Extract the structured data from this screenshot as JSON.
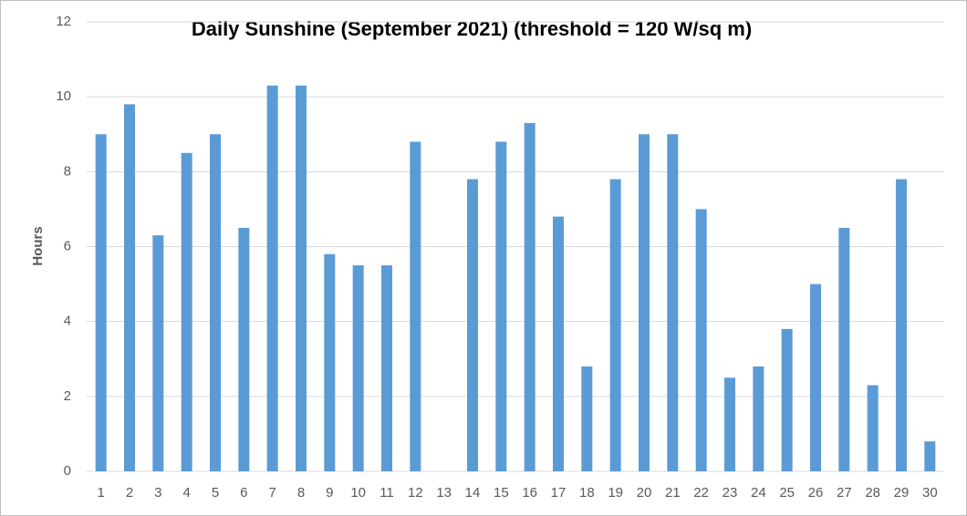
{
  "chart_data": {
    "type": "bar",
    "title": "Daily Sunshine (September 2021) (threshold = 120 W/sq m)",
    "y_label": "Hours",
    "categories": [
      "1",
      "2",
      "3",
      "4",
      "5",
      "6",
      "7",
      "8",
      "9",
      "10",
      "11",
      "12",
      "13",
      "14",
      "15",
      "16",
      "17",
      "18",
      "19",
      "20",
      "21",
      "22",
      "23",
      "24",
      "25",
      "26",
      "27",
      "28",
      "29",
      "30"
    ],
    "values": [
      9.0,
      9.8,
      6.3,
      8.5,
      9.0,
      6.5,
      10.3,
      10.3,
      5.8,
      5.5,
      5.5,
      8.8,
      0,
      7.8,
      8.8,
      9.3,
      6.8,
      2.8,
      7.8,
      9.0,
      9.0,
      7.0,
      2.5,
      2.8,
      3.8,
      5.0,
      6.5,
      2.3,
      7.8,
      0.8
    ],
    "color": "#5b9bd5",
    "ylim": [
      0,
      12
    ],
    "yticks": [
      0,
      2,
      4,
      6,
      8,
      10,
      12
    ],
    "grid": true
  }
}
